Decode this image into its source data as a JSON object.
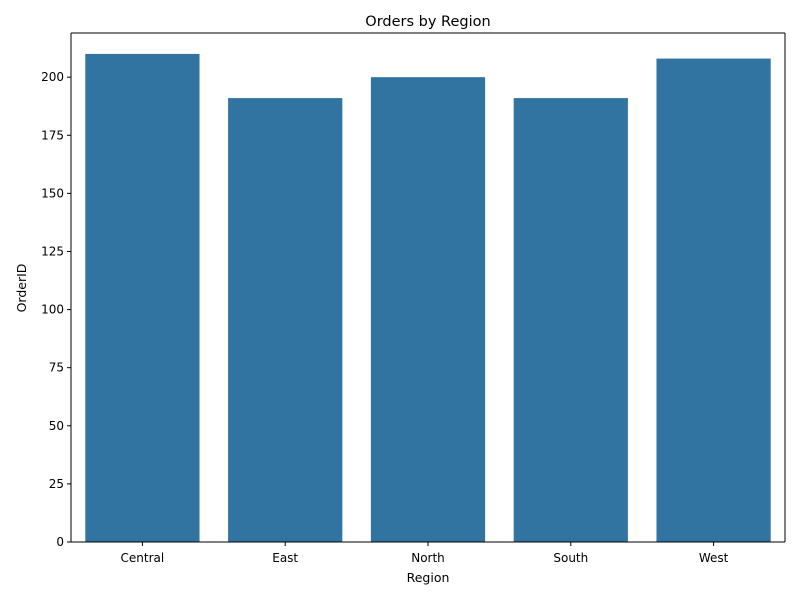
{
  "chart_data": {
    "type": "bar",
    "title": "Orders by Region",
    "xlabel": "Region",
    "ylabel": "OrderID",
    "categories": [
      "Central",
      "East",
      "North",
      "South",
      "West"
    ],
    "values": [
      210,
      191,
      200,
      191,
      208
    ],
    "ylim": [
      0,
      219
    ],
    "yticks": [
      0,
      25,
      50,
      75,
      100,
      125,
      150,
      175,
      200
    ],
    "bar_color": "#3274a1",
    "grid": false,
    "legend": "none"
  }
}
